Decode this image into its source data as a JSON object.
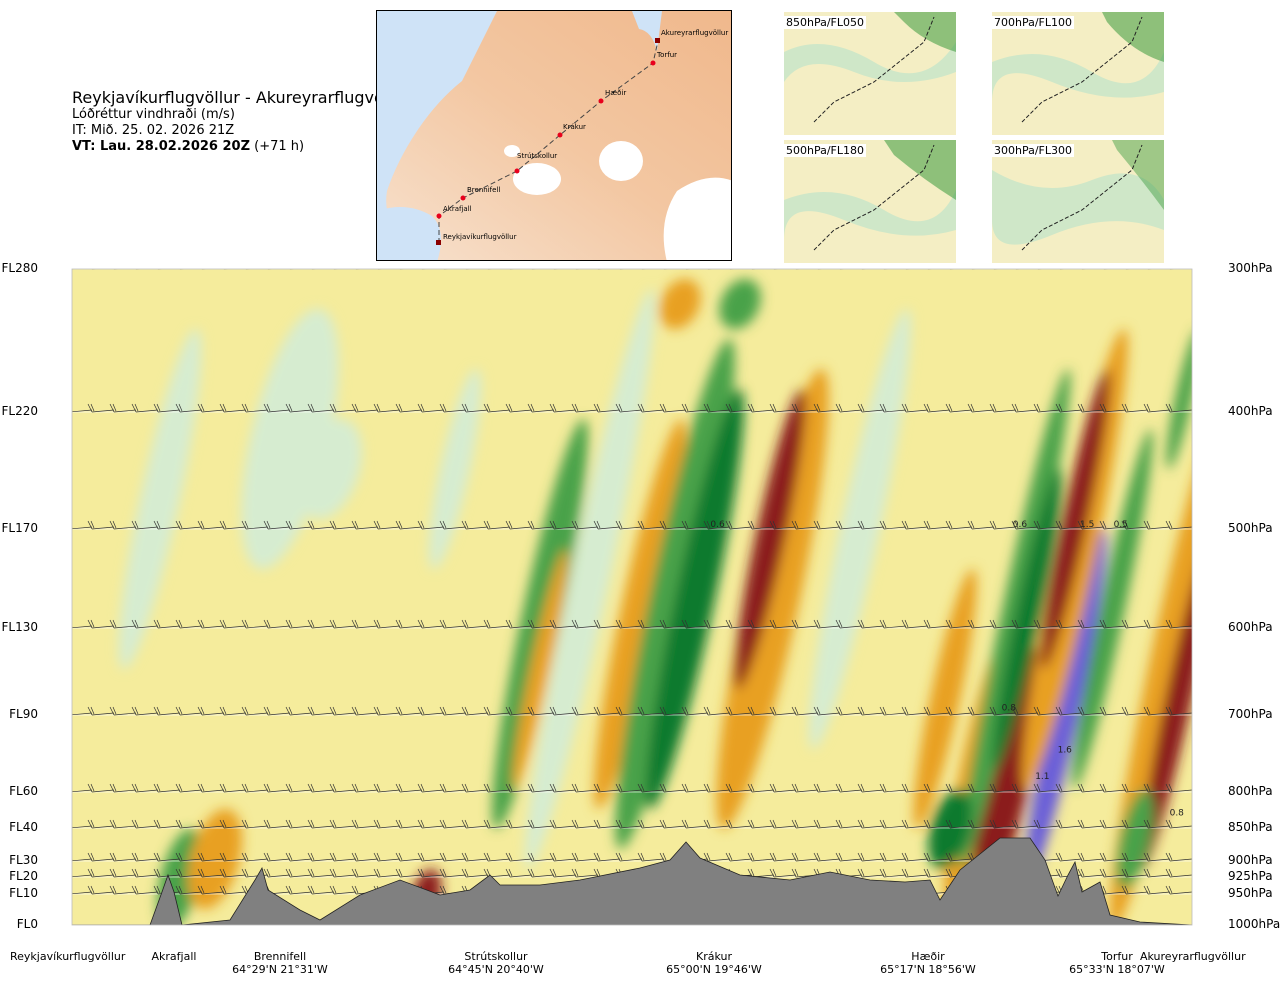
{
  "title": {
    "route": "Reykjavíkurflugvöllur - Akureyrarflugvöllur",
    "variable": "Lóðréttur vindhraði (m/s)",
    "it": "IT: Mið. 25. 02. 2026 21Z",
    "vt_bold": "VT: Lau. 28.02.2026 20Z",
    "vt_lead": "(+71 h)"
  },
  "map": {
    "places": [
      "Akureyrarflugvöllur",
      "Torfur",
      "Hæðir",
      "Krákur",
      "Strútskollur",
      "Brennifell",
      "Akrafjall",
      "Reykjavíkurflugvöllur"
    ]
  },
  "thumbnails": [
    "850hPa/FL050",
    "700hPa/FL100",
    "500hPa/FL180",
    "300hPa/FL300"
  ],
  "colors": {
    "strong_down": "#8b1a1a",
    "down": "#e8a020",
    "weak_down": "#f5ec9c",
    "weak_up": "#d6ecd0",
    "up": "#49a24a",
    "strong_up": "#0f7a2e",
    "very_strong_up": "#6a5fd8",
    "terrain": "#808080"
  },
  "chart_data": {
    "type": "heatmap",
    "title": "Lóðréttur vindhraði (m/s)",
    "levels": [
      {
        "fl": "FL280",
        "hpa": "300hPa"
      },
      {
        "fl": "FL220",
        "hpa": "400hPa"
      },
      {
        "fl": "FL170",
        "hpa": "500hPa"
      },
      {
        "fl": "FL130",
        "hpa": "600hPa"
      },
      {
        "fl": "FL90",
        "hpa": "700hPa"
      },
      {
        "fl": "FL60",
        "hpa": "800hPa"
      },
      {
        "fl": "FL40",
        "hpa": "850hPa"
      },
      {
        "fl": "FL30",
        "hpa": "900hPa"
      },
      {
        "fl": "FL20",
        "hpa": "925hPa"
      },
      {
        "fl": "FL10",
        "hpa": "950hPa"
      },
      {
        "fl": "FL0",
        "hpa": "1000hPa"
      }
    ],
    "waypoints": [
      {
        "name": "Reykjavíkurflugvöllur",
        "coord": ""
      },
      {
        "name": "Akrafjall",
        "coord": ""
      },
      {
        "name": "Brennifell",
        "coord": "64°29'N 21°31'W"
      },
      {
        "name": "Strútskollur",
        "coord": "64°45'N 20°40'W"
      },
      {
        "name": "Krákur",
        "coord": "65°00'N 19°46'W"
      },
      {
        "name": "Hæðir",
        "coord": "65°17'N 18°56'W"
      },
      {
        "name": "Torfur",
        "coord": "65°33'N 18°07'W"
      },
      {
        "name": "Akureyrarflugvöllur",
        "coord": ""
      }
    ],
    "contour_labels": [
      {
        "text": "0.6",
        "x": 0.57,
        "level": 0.48
      },
      {
        "text": "0.6",
        "x": 0.84,
        "level": 0.48
      },
      {
        "text": "1.5",
        "x": 0.9,
        "level": 0.48
      },
      {
        "text": "0.5",
        "x": 0.93,
        "level": 0.48
      },
      {
        "text": "0.8",
        "x": 0.83,
        "level": 0.83
      },
      {
        "text": "1.6",
        "x": 0.88,
        "level": 0.91
      },
      {
        "text": "1.1",
        "x": 0.86,
        "level": 0.96
      },
      {
        "text": "0.8",
        "x": 0.98,
        "level": 1.03
      }
    ]
  }
}
